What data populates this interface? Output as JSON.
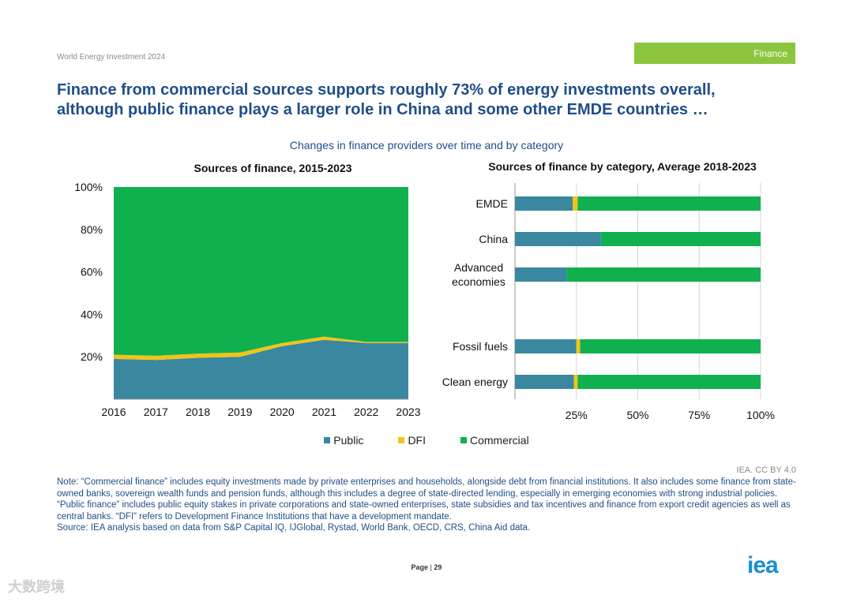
{
  "header": {
    "doc_label": "World Energy Investment 2024",
    "section_tag": "Finance"
  },
  "title": {
    "line1": "Finance from commercial sources supports roughly 73% of energy investments overall,",
    "line2": "although public finance plays a larger role in China and some other EMDE countries …"
  },
  "subtitle": "Changes in finance providers over time and by category",
  "colors": {
    "public": "#3a87a0",
    "dfi": "#f2c417",
    "commercial": "#10b04f",
    "title": "#1f4e87",
    "tag": "#8cc63f"
  },
  "chart_data": [
    {
      "type": "area",
      "title": "Sources of finance, 2015-2023",
      "x": [
        "2016",
        "2017",
        "2018",
        "2019",
        "2020",
        "2021",
        "2022",
        "2023"
      ],
      "series": [
        {
          "name": "Public",
          "values": [
            19,
            18.5,
            19.5,
            20,
            25,
            28,
            26.5,
            26.5
          ]
        },
        {
          "name": "DFI",
          "values": [
            2,
            2,
            2,
            2,
            1.5,
            1.5,
            0.5,
            0.5
          ]
        },
        {
          "name": "Commercial",
          "values": [
            79,
            79.5,
            78.5,
            78,
            73.5,
            70.5,
            73,
            73
          ]
        }
      ],
      "yticks": [
        "20%",
        "40%",
        "60%",
        "80%",
        "100%"
      ],
      "ylim": [
        0,
        100
      ],
      "stacked": true
    },
    {
      "type": "bar",
      "orientation": "horizontal",
      "stacked": true,
      "title": "Sources of finance by category, Average 2018-2023",
      "categories": [
        "EMDE",
        "China",
        "Advanced economies",
        "Fossil fuels",
        "Clean energy"
      ],
      "series": [
        {
          "name": "Public",
          "values": [
            23.5,
            35,
            21,
            25,
            24
          ]
        },
        {
          "name": "DFI",
          "values": [
            2,
            0,
            0,
            1.5,
            1.5
          ]
        },
        {
          "name": "Commercial",
          "values": [
            74.5,
            65,
            79,
            73.5,
            74.5
          ]
        }
      ],
      "xticks": [
        "25%",
        "50%",
        "75%",
        "100%"
      ],
      "xlim": [
        0,
        100
      ]
    }
  ],
  "legend": [
    {
      "label": "Public",
      "key": "public"
    },
    {
      "label": "DFI",
      "key": "dfi"
    },
    {
      "label": "Commercial",
      "key": "commercial"
    }
  ],
  "credit": "IEA. CC BY 4.0",
  "notes": {
    "note": "Note: “Commercial finance” includes equity investments made by private enterprises and households, alongside debt from financial institutions. It also includes some finance from state-owned banks, sovereign wealth funds and pension funds, although this includes a degree of state-directed lending, especially in emerging economies with strong industrial policies. “Public finance” includes public equity stakes in private corporations and state-owned enterprises, state subsidies and tax incentives and finance from export credit agencies as well as central banks. “DFI” refers to Development Finance Institutions that have a development mandate.",
    "source": "Source: IEA analysis based on data from S&P Capital IQ, IJGlobal, Rystad, World Bank, OECD, CRS, China Aid data."
  },
  "footer": {
    "page_label": "Page",
    "page_number": "29",
    "logo_text": "iea",
    "watermark": "大数跨境"
  }
}
